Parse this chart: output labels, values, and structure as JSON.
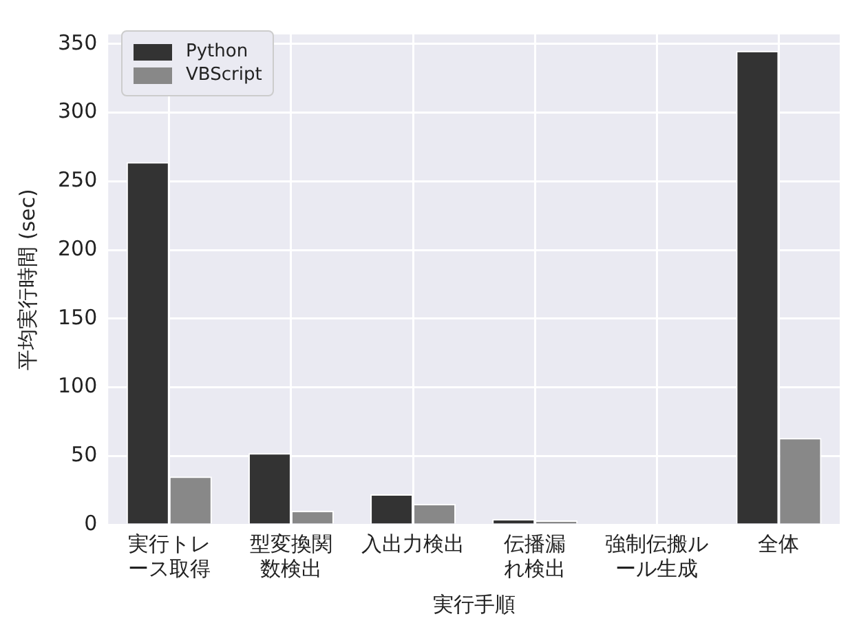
{
  "chart_data": {
    "type": "bar",
    "xlabel": "実行手順",
    "ylabel": "平均実行時間 (sec)",
    "categories": [
      "実行トレース取得",
      "型変換関数検出",
      "入出力検出",
      "伝播漏れ検出",
      "強制伝搬ルール生成",
      "全体"
    ],
    "series": [
      {
        "name": "Python",
        "color": "#333333",
        "values": [
          264,
          52,
          22,
          4,
          0,
          345
        ]
      },
      {
        "name": "VBScript",
        "color": "#888888",
        "values": [
          35,
          10,
          15,
          3,
          0,
          63
        ]
      }
    ],
    "ylim": [
      0,
      357
    ],
    "yticks": [
      0,
      50,
      100,
      150,
      200,
      250,
      300,
      350
    ],
    "grid": true,
    "legend": "top left"
  }
}
